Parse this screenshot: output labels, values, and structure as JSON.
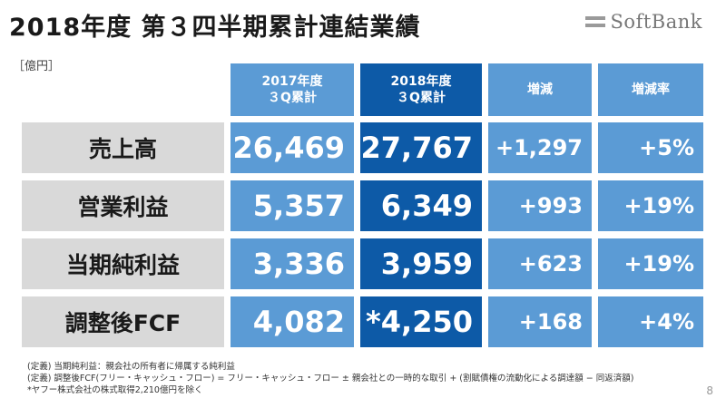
{
  "header": {
    "title": "2018年度 第３四半期累計連結業績",
    "logo_text": "SoftBank",
    "unit": "［億円］"
  },
  "table": {
    "columns": [
      "2017年度\n３Q累計",
      "2018年度\n３Q累計",
      "増減",
      "増減率"
    ],
    "rows": [
      {
        "label": "売上高",
        "v2017": "26,469",
        "v2018": "27,767",
        "change": "+1,297",
        "rate": "+5%"
      },
      {
        "label": "営業利益",
        "v2017": "5,357",
        "v2018": "6,349",
        "change": "+993",
        "rate": "+19%"
      },
      {
        "label": "当期純利益",
        "v2017": "3,336",
        "v2018": "3,959",
        "change": "+623",
        "rate": "+19%"
      },
      {
        "label": "調整後FCF",
        "v2017": "4,082",
        "v2018": "*4,250",
        "change": "+168",
        "rate": "+4%"
      }
    ]
  },
  "notes": [
    "(定義) 当期純利益：親会社の所有者に帰属する純利益",
    "(定義) 調整後FCF(フリー・キャッシュ・フロー) = フリー・キャッシュ・フロー ± 親会社との一時的な取引 + (割賦債権の流動化による調達額 − 同返済額)",
    "*ヤフー株式会社の株式取得2,210億円を除く"
  ],
  "page_number": "8",
  "colors": {
    "light_blue": "#5b9bd5",
    "dark_blue": "#0d5aa7",
    "label_gray": "#d9d9d9"
  }
}
